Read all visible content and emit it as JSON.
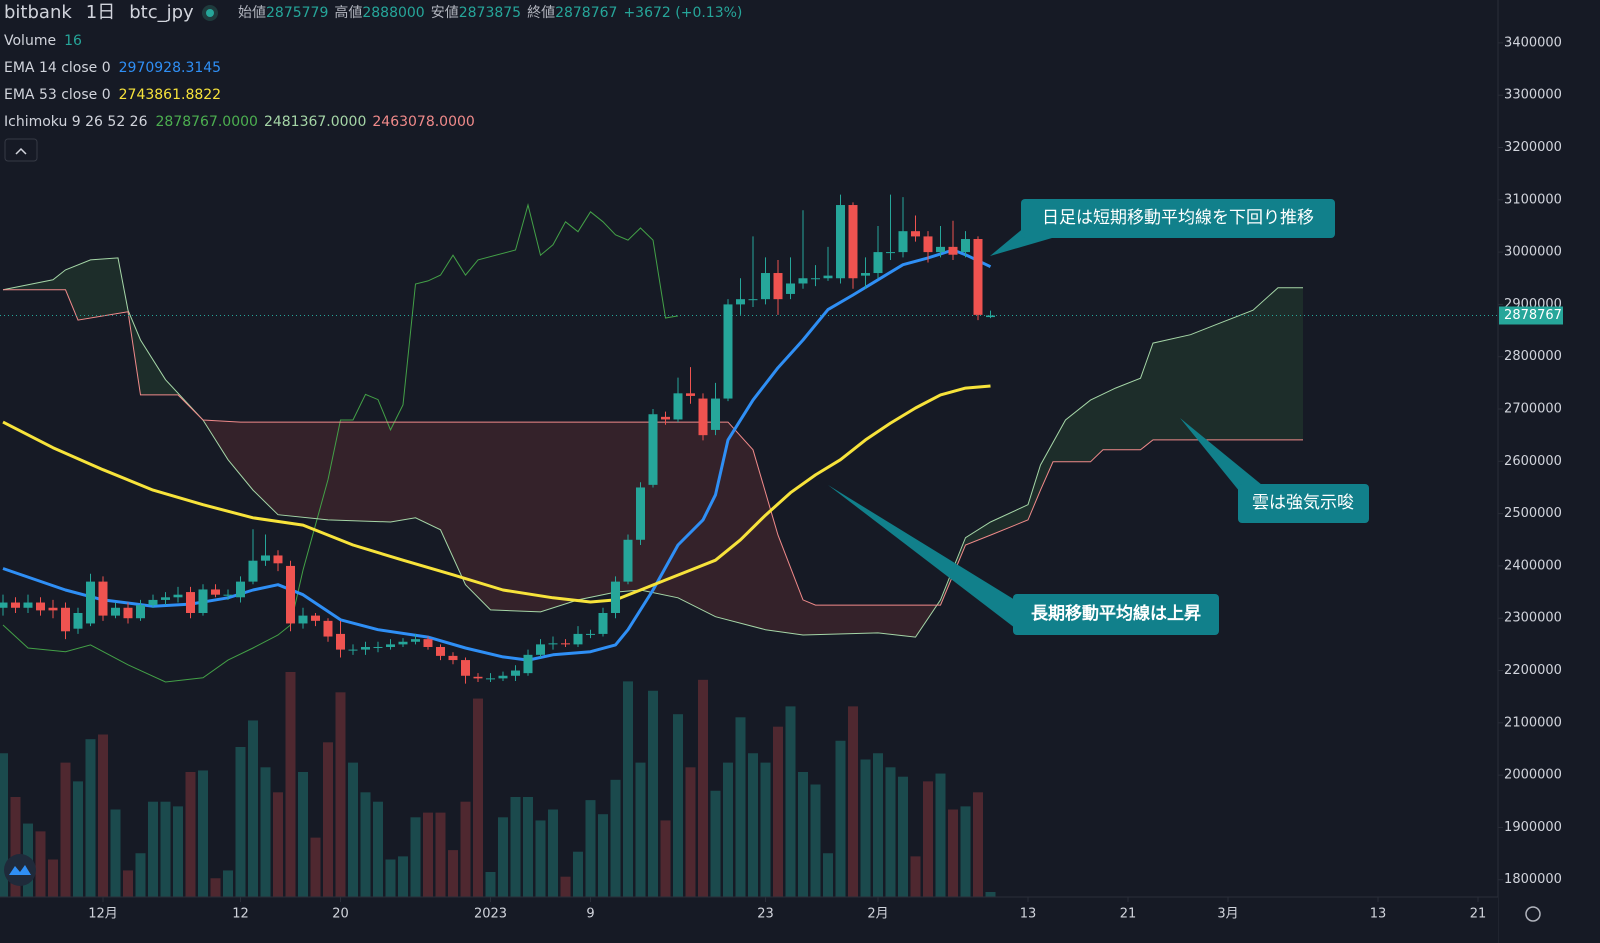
{
  "chart_data": {
    "type": "candlestick",
    "header": {
      "exchange": "bitbank",
      "interval": "1日",
      "symbol": "btc_jpy",
      "open_label": "始値",
      "high_label": "高値",
      "low_label": "安値",
      "close_label": "終値",
      "change": "+3672 (+0.13%)"
    },
    "volume_label": "Volume",
    "x": [
      0,
      1,
      2,
      3,
      4,
      5,
      6,
      7,
      8,
      9,
      10,
      11,
      12,
      13,
      14,
      15,
      16,
      17,
      18,
      19,
      20,
      21,
      22,
      23,
      24,
      25,
      26,
      27,
      28,
      29,
      30,
      31,
      32,
      33,
      34,
      35,
      36,
      37,
      38,
      39,
      40,
      41,
      42,
      43,
      44,
      45,
      46,
      47,
      48,
      49,
      50,
      51,
      52,
      53,
      54,
      55,
      56,
      57,
      58,
      59,
      60,
      61,
      62,
      63,
      64,
      65,
      66,
      67,
      68,
      69,
      70,
      71,
      72,
      73,
      74,
      75,
      76,
      77,
      78,
      79
    ],
    "open": [
      2320000,
      2330000,
      2320000,
      2330000,
      2320000,
      2320000,
      2280000,
      2290000,
      2370000,
      2305000,
      2320000,
      2300000,
      2325000,
      2335000,
      2340000,
      2350000,
      2310000,
      2355000,
      2345000,
      2340000,
      2370000,
      2410000,
      2420000,
      2400000,
      2290000,
      2305000,
      2295000,
      2270000,
      2240000,
      2240000,
      2245000,
      2245000,
      2250000,
      2255000,
      2260000,
      2245000,
      2228000,
      2220000,
      2188000,
      2185000,
      2185000,
      2190000,
      2195000,
      2230000,
      2250000,
      2252000,
      2250000,
      2270000,
      2270000,
      2310000,
      2370000,
      2450000,
      2555000,
      2685000,
      2680000,
      2730000,
      2720000,
      2660000,
      2720000,
      2900000,
      2910000,
      2910000,
      2960000,
      2920000,
      2940000,
      2950000,
      2950000,
      2950000,
      3090000,
      2955000,
      2960000,
      3000000,
      3000000,
      3040000,
      3030000,
      3000000,
      3010000,
      3000000,
      3025000,
      2875779
    ],
    "high": [
      2345000,
      2340000,
      2345000,
      2340000,
      2335000,
      2330000,
      2320000,
      2385000,
      2380000,
      2330000,
      2330000,
      2335000,
      2345000,
      2350000,
      2360000,
      2360000,
      2365000,
      2365000,
      2355000,
      2380000,
      2470000,
      2460000,
      2430000,
      2410000,
      2320000,
      2310000,
      2300000,
      2295000,
      2250000,
      2255000,
      2255000,
      2260000,
      2262000,
      2270000,
      2265000,
      2250000,
      2235000,
      2225000,
      2195000,
      2195000,
      2198000,
      2210000,
      2240000,
      2260000,
      2265000,
      2260000,
      2285000,
      2278000,
      2320000,
      2380000,
      2460000,
      2560000,
      2700000,
      2695000,
      2760000,
      2780000,
      2730000,
      2750000,
      2910000,
      2950000,
      3030000,
      2990000,
      2985000,
      2990000,
      3080000,
      2975000,
      3010000,
      3110000,
      3095000,
      2990000,
      3050000,
      3110000,
      3105000,
      3070000,
      3040000,
      3050000,
      3060000,
      3040000,
      3030000,
      2888000
    ],
    "low": [
      2305000,
      2310000,
      2310000,
      2305000,
      2300000,
      2260000,
      2270000,
      2285000,
      2295000,
      2300000,
      2290000,
      2295000,
      2320000,
      2325000,
      2330000,
      2300000,
      2305000,
      2340000,
      2335000,
      2330000,
      2365000,
      2400000,
      2390000,
      2275000,
      2280000,
      2285000,
      2255000,
      2225000,
      2230000,
      2230000,
      2235000,
      2240000,
      2245000,
      2250000,
      2240000,
      2220000,
      2212000,
      2175000,
      2178000,
      2178000,
      2180000,
      2180000,
      2190000,
      2225000,
      2240000,
      2245000,
      2245000,
      2262000,
      2265000,
      2300000,
      2365000,
      2440000,
      2550000,
      2670000,
      2675000,
      2710000,
      2640000,
      2650000,
      2715000,
      2880000,
      2895000,
      2900000,
      2880000,
      2910000,
      2930000,
      2935000,
      2945000,
      2940000,
      2930000,
      2930000,
      2950000,
      2985000,
      2990000,
      3020000,
      2980000,
      2990000,
      2985000,
      2990000,
      2870000,
      2873875
    ],
    "close": [
      2330000,
      2320000,
      2330000,
      2315000,
      2315000,
      2275000,
      2310000,
      2370000,
      2305000,
      2320000,
      2300000,
      2325000,
      2335000,
      2340000,
      2345000,
      2310000,
      2355000,
      2345000,
      2345000,
      2370000,
      2410000,
      2420000,
      2405000,
      2290000,
      2305000,
      2295000,
      2265000,
      2240000,
      2240000,
      2245000,
      2245000,
      2250000,
      2255000,
      2260000,
      2245000,
      2228000,
      2220000,
      2190000,
      2185000,
      2185000,
      2190000,
      2200000,
      2230000,
      2250000,
      2252000,
      2250000,
      2270000,
      2270000,
      2310000,
      2370000,
      2450000,
      2550000,
      2690000,
      2680000,
      2730000,
      2725000,
      2650000,
      2720000,
      2900000,
      2910000,
      2910000,
      2960000,
      2910000,
      2940000,
      2950000,
      2950000,
      2955000,
      3090000,
      2950000,
      2960000,
      3000000,
      3000000,
      3040000,
      3030000,
      3000000,
      3010000,
      2995000,
      3025000,
      2880000,
      2878767
    ],
    "volume": [
      460,
      320,
      235,
      210,
      120,
      430,
      370,
      505,
      520,
      280,
      85,
      140,
      305,
      305,
      290,
      400,
      405,
      60,
      85,
      480,
      565,
      415,
      335,
      720,
      400,
      190,
      495,
      655,
      430,
      335,
      305,
      120,
      130,
      255,
      270,
      270,
      150,
      305,
      635,
      80,
      255,
      320,
      320,
      245,
      280,
      65,
      145,
      310,
      265,
      375,
      690,
      430,
      660,
      245,
      585,
      415,
      695,
      340,
      430,
      575,
      460,
      430,
      545,
      610,
      400,
      360,
      140,
      500,
      610,
      440,
      460,
      415,
      385,
      130,
      370,
      395,
      280,
      290,
      335,
      16
    ],
    "up_color": "#26a69a",
    "down_color": "#ef5350",
    "volume_up_color": "#1b4a4d",
    "volume_down_color": "#4f2830",
    "volume_ylim": [
      0,
      800
    ],
    "xlim": [
      -0.24,
      119.6
    ],
    "xticks": [
      {
        "value": 8,
        "label": "12月"
      },
      {
        "value": 19,
        "label": "12"
      },
      {
        "value": 27,
        "label": "20"
      },
      {
        "value": 39,
        "label": "2023"
      },
      {
        "value": 47,
        "label": "9"
      },
      {
        "value": 61,
        "label": "23"
      },
      {
        "value": 70,
        "label": "2月"
      },
      {
        "value": 82,
        "label": "13"
      },
      {
        "value": 90,
        "label": "21"
      },
      {
        "value": 98,
        "label": "3月"
      },
      {
        "value": 110,
        "label": "13"
      },
      {
        "value": 118,
        "label": "21"
      }
    ],
    "ylim": [
      1767000,
      3482000
    ],
    "yticks": [
      1800000,
      1900000,
      2000000,
      2100000,
      2200000,
      2300000,
      2400000,
      2500000,
      2600000,
      2700000,
      2800000,
      2900000,
      3000000,
      3100000,
      3200000,
      3300000,
      3400000
    ],
    "lines": [
      {
        "name": "EMA 14 close 0",
        "color": "#2f8ff5",
        "value_label": "2970928.3145",
        "x": [
          0,
          5,
          8,
          12,
          15,
          18,
          20,
          22,
          24,
          27,
          30,
          34,
          37,
          40,
          42,
          44,
          47,
          49,
          50,
          52,
          54,
          56,
          57,
          58,
          60,
          62,
          64,
          66,
          68,
          70,
          72,
          74,
          76,
          77,
          79
        ],
        "values": [
          2395000,
          2354000,
          2335000,
          2323000,
          2327000,
          2339000,
          2354000,
          2364000,
          2345000,
          2297000,
          2278000,
          2264000,
          2243000,
          2226000,
          2220000,
          2230000,
          2236000,
          2249000,
          2278000,
          2354000,
          2440000,
          2488000,
          2536000,
          2641000,
          2717000,
          2779000,
          2832000,
          2890000,
          2918000,
          2947000,
          2976000,
          2989000,
          3004000,
          2995000,
          2972000
        ]
      },
      {
        "name": "EMA 53 close 0",
        "color": "#f7e33b",
        "value_label": "2743861.8822",
        "x": [
          0,
          4,
          8,
          12,
          16,
          20,
          24,
          28,
          32,
          36,
          40,
          44,
          47,
          49,
          51,
          53,
          55,
          57,
          59,
          61,
          63,
          65,
          67,
          69,
          71,
          73,
          75,
          77,
          79
        ],
        "values": [
          2675000,
          2626000,
          2584000,
          2545000,
          2517000,
          2492000,
          2478000,
          2440000,
          2411000,
          2383000,
          2354000,
          2339000,
          2331000,
          2335000,
          2354000,
          2373000,
          2392000,
          2411000,
          2450000,
          2497000,
          2540000,
          2574000,
          2603000,
          2641000,
          2673000,
          2702000,
          2727000,
          2740000,
          2744000
        ]
      }
    ],
    "ichimoku": {
      "name": "Ichimoku 9 26 52 26",
      "value_labels": [
        "2878767.0000",
        "2481367.0000",
        "2463078.0000"
      ],
      "label_colors": [
        "#4caf50",
        "#a5d6a7",
        "#f08a8a"
      ],
      "cloud_up_color": "rgba(76,175,80,0.13)",
      "cloud_down_color": "rgba(239,83,80,0.14)",
      "lagging": {
        "color": "#43a047",
        "x": [
          0,
          2,
          5,
          7,
          10,
          13,
          16,
          18,
          20,
          22,
          23,
          24,
          26,
          27,
          28,
          29,
          30,
          31,
          32,
          33,
          34,
          35,
          36,
          37,
          38,
          41,
          42,
          43,
          44,
          45,
          46,
          47,
          48,
          49,
          50,
          51,
          52,
          53,
          54
        ],
        "values": [
          2287000,
          2243000,
          2236000,
          2249000,
          2211000,
          2178000,
          2186000,
          2220000,
          2243000,
          2268000,
          2287000,
          2392000,
          2565000,
          2679000,
          2679000,
          2728000,
          2718000,
          2660000,
          2708000,
          2939000,
          2945000,
          2956000,
          2994000,
          2956000,
          2985000,
          3004000,
          3090000,
          2994000,
          3014000,
          3058000,
          3039000,
          3077000,
          3058000,
          3033000,
          3023000,
          3046000,
          3023000,
          2874000,
          2878000
        ]
      },
      "span_a": {
        "color": "#a5d6a7",
        "x": [
          0,
          4,
          5,
          7,
          9.2,
          10,
          11,
          13,
          16,
          18,
          20,
          22,
          26,
          31,
          33,
          35,
          37,
          39,
          43,
          46,
          49,
          51,
          54,
          57,
          61,
          64,
          70,
          73,
          75,
          77,
          79,
          82,
          83,
          85,
          87,
          89,
          91,
          92,
          95,
          97,
          100,
          102,
          104
        ],
        "values": [
          2928000,
          2947000,
          2966000,
          2985000,
          2989000,
          2889000,
          2832000,
          2756000,
          2679000,
          2603000,
          2545000,
          2498000,
          2488000,
          2484000,
          2492000,
          2469000,
          2364000,
          2316000,
          2312000,
          2335000,
          2350000,
          2354000,
          2339000,
          2303000,
          2278000,
          2268000,
          2272000,
          2264000,
          2335000,
          2454000,
          2484000,
          2517000,
          2593000,
          2679000,
          2717000,
          2740000,
          2759000,
          2826000,
          2842000,
          2861000,
          2889000,
          2932000,
          2932000
        ]
      },
      "span_b": {
        "color": "#f08a8a",
        "x": [
          0,
          5,
          6,
          10,
          11,
          14,
          16,
          19,
          58,
          60,
          62,
          64,
          65,
          75,
          77,
          79,
          82,
          83,
          84,
          87,
          88,
          91,
          92,
          104
        ],
        "values": [
          2928000,
          2928000,
          2870000,
          2886000,
          2727000,
          2727000,
          2679000,
          2675000,
          2675000,
          2622000,
          2459000,
          2335000,
          2325000,
          2325000,
          2440000,
          2459000,
          2488000,
          2545000,
          2599000,
          2599000,
          2622000,
          2622000,
          2641000,
          2641000
        ]
      }
    },
    "annotations": [
      {
        "text": "日足は短期移動平均線を下回り推移"
      },
      {
        "text": "雲は強気示唆"
      },
      {
        "text": "長期移動平均線は上昇"
      }
    ]
  }
}
